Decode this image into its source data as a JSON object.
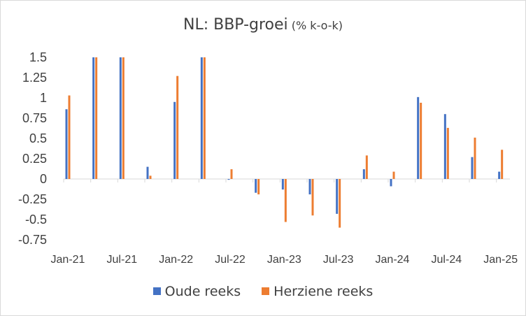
{
  "chart_data": {
    "type": "bar",
    "title": "NL: BBP-groei",
    "subtitle": "(% k-o-k)",
    "xlabel": "",
    "ylabel": "",
    "ylim": [
      -0.75,
      1.5
    ],
    "yticks": [
      -0.75,
      -0.5,
      -0.25,
      0,
      0.25,
      0.5,
      0.75,
      1,
      1.25,
      1.5
    ],
    "ytick_labels": [
      "-0.75",
      "-0.5",
      "-0.25",
      "0",
      "0.25",
      "0.5",
      "0.75",
      "1",
      "1.25",
      "1.5"
    ],
    "xtick_labels": [
      "Jan-21",
      "Jul-21",
      "Jan-22",
      "Jul-22",
      "Jan-23",
      "Jul-23",
      "Jan-24",
      "Jul-24",
      "Jan-25"
    ],
    "categories": [
      "Jan-21",
      "Apr-21",
      "Jul-21",
      "Oct-21",
      "Jan-22",
      "Apr-22",
      "Jul-22",
      "Oct-22",
      "Jan-23",
      "Apr-23",
      "Jul-23",
      "Oct-23",
      "Jan-24",
      "Apr-24",
      "Jul-24",
      "Oct-24",
      "Jan-25"
    ],
    "series": [
      {
        "name": "Oude reeks",
        "color": "#4472c4",
        "values": [
          0.86,
          1.5,
          1.5,
          0.15,
          0.95,
          1.5,
          -0.01,
          -0.17,
          -0.13,
          -0.19,
          -0.43,
          0.12,
          -0.09,
          1.01,
          0.8,
          0.27,
          0.09
        ]
      },
      {
        "name": "Herziene reeks",
        "color": "#ed7d31",
        "values": [
          1.03,
          1.5,
          1.5,
          0.04,
          1.27,
          1.5,
          0.12,
          -0.19,
          -0.53,
          -0.45,
          -0.6,
          0.29,
          0.09,
          0.94,
          0.63,
          0.51,
          0.36
        ]
      }
    ],
    "grid": false,
    "legend_position": "bottom"
  }
}
